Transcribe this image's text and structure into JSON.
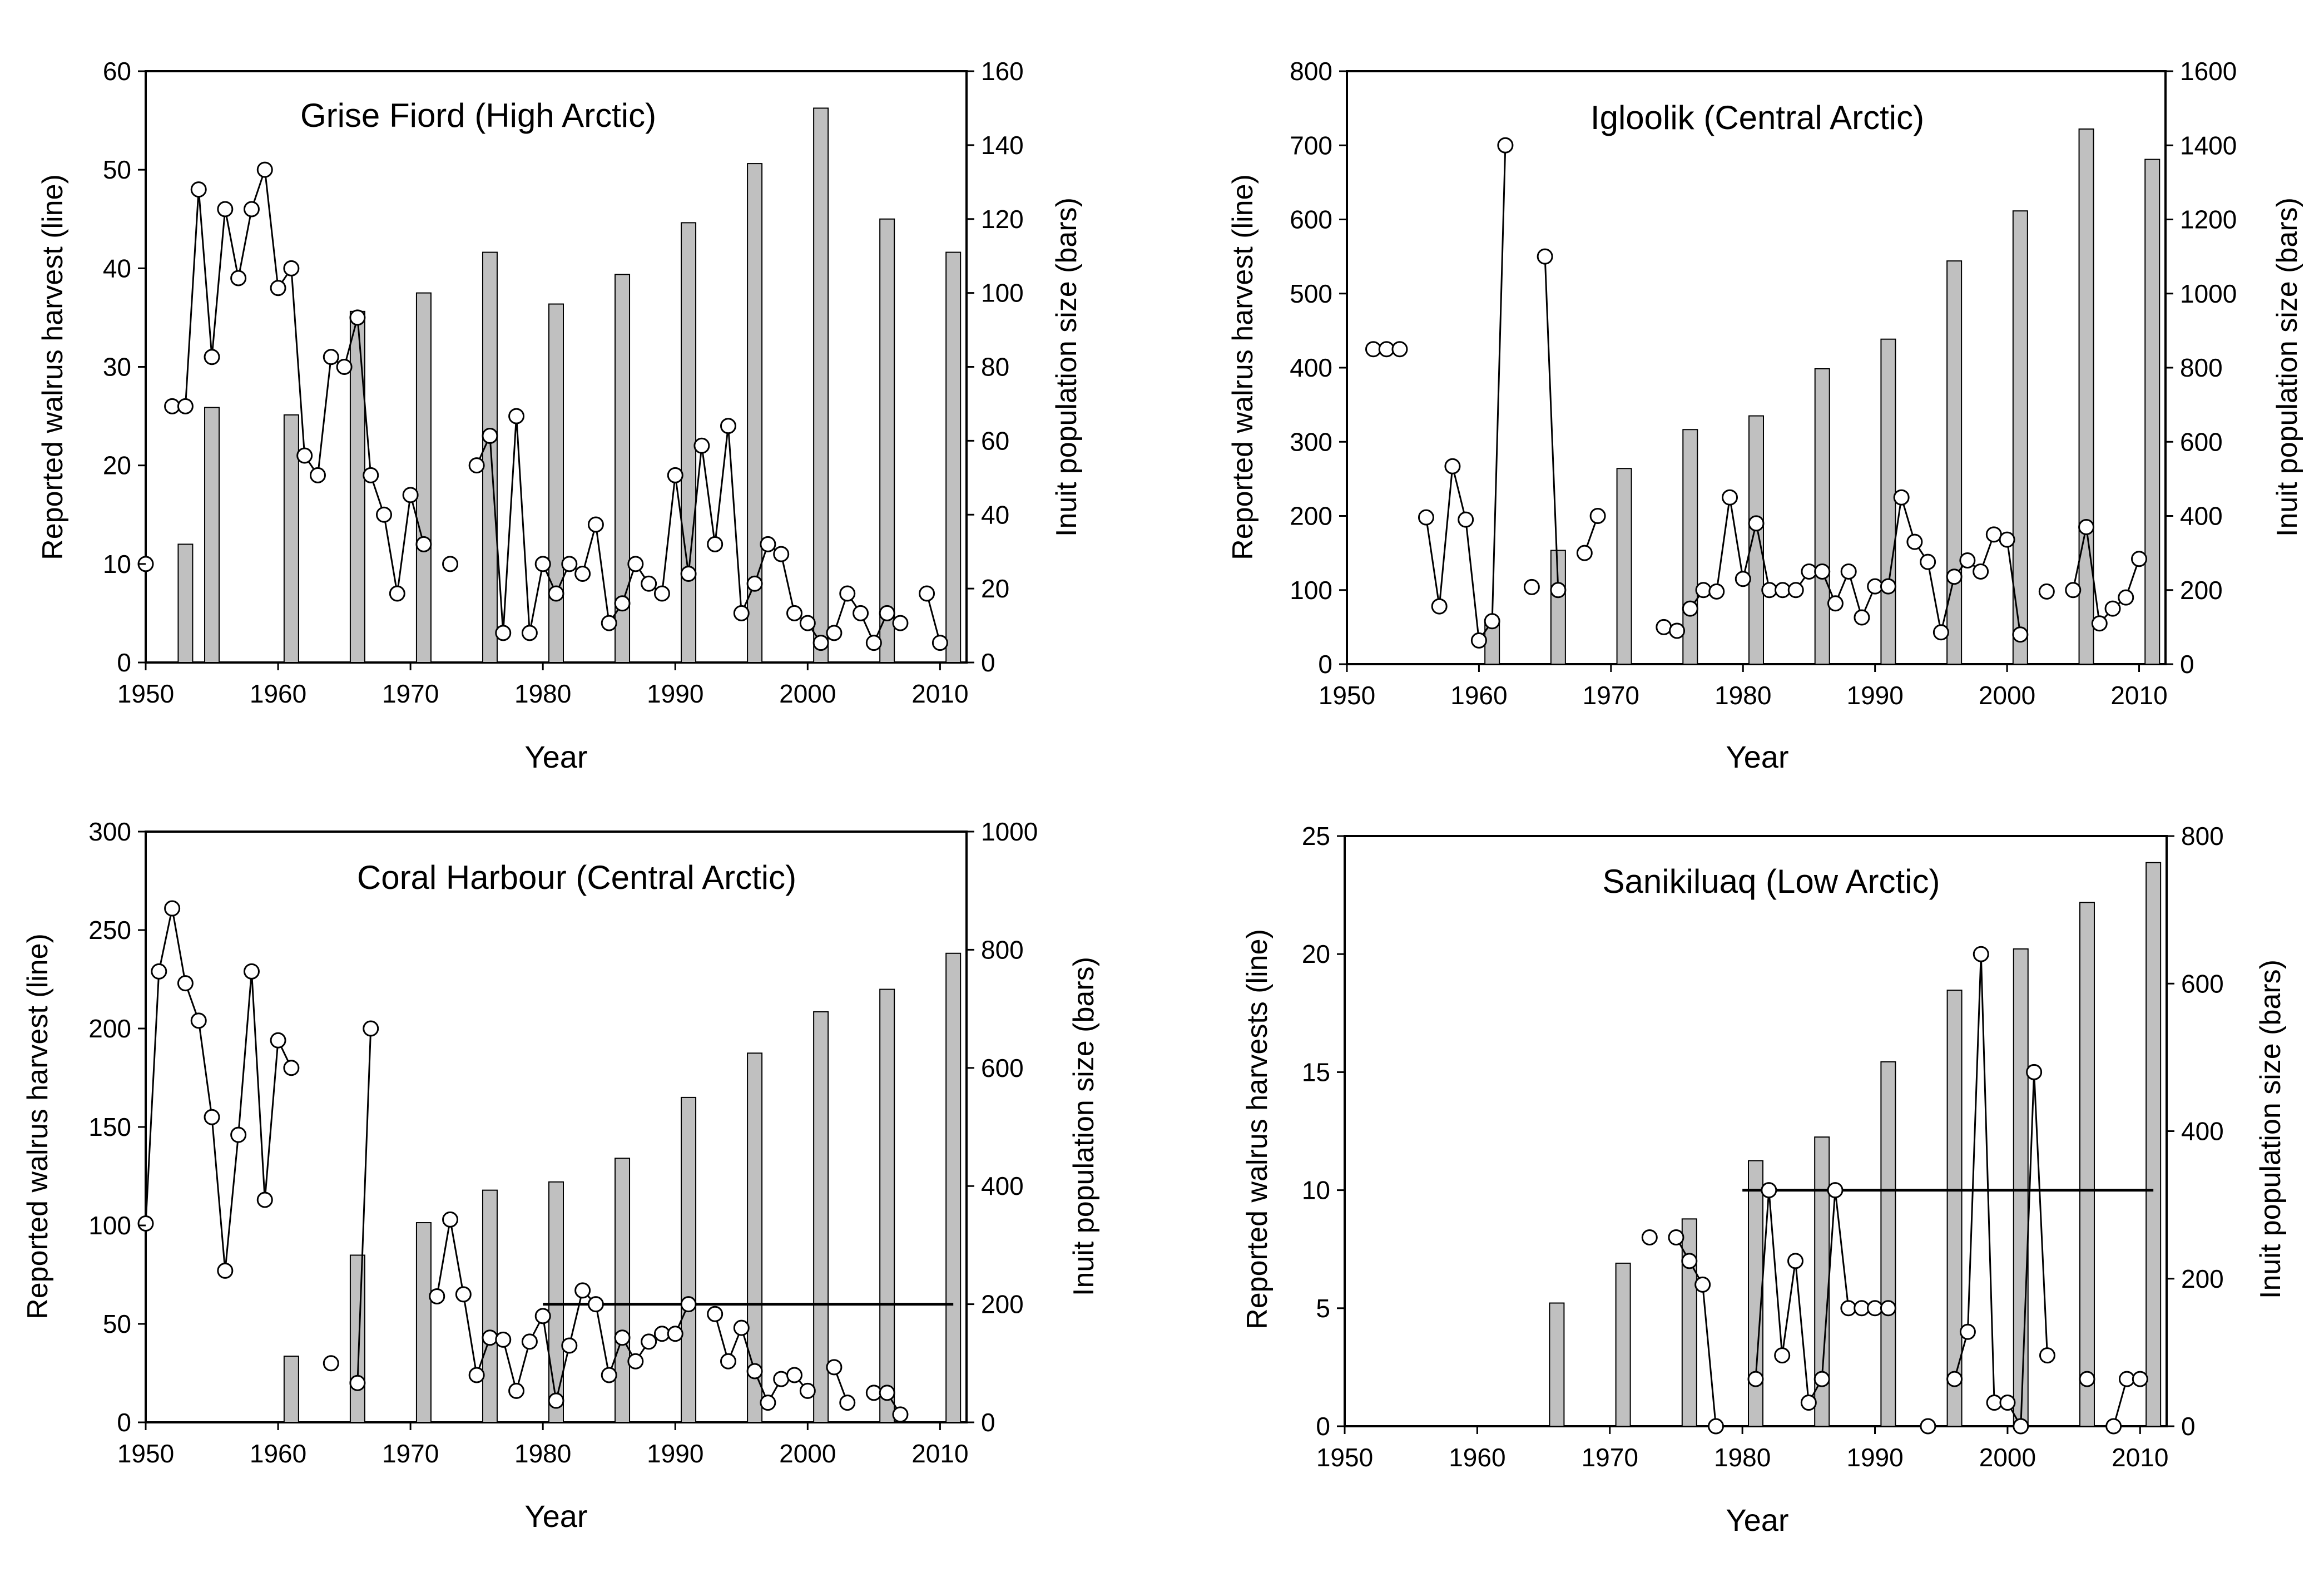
{
  "chart_data": [
    {
      "type": "bar+line",
      "title": "Grise Fiord (High Arctic)",
      "xlabel": "Year",
      "ylabel": "Reported walrus harvest (line)",
      "y2label": "Inuit population size (bars)",
      "xlim": [
        1950,
        2012
      ],
      "xticks": [
        1950,
        1960,
        1970,
        1980,
        1990,
        2000,
        2010
      ],
      "ylim": [
        0,
        60
      ],
      "yticks": [
        0,
        10,
        20,
        30,
        40,
        50,
        60
      ],
      "y2lim": [
        0,
        160
      ],
      "y2ticks": [
        0,
        20,
        40,
        60,
        80,
        100,
        120,
        140,
        160
      ],
      "bars": {
        "name": "Inuit population size",
        "x": [
          1953,
          1955,
          1961,
          1966,
          1971,
          1976,
          1981,
          1986,
          1991,
          1996,
          2001,
          2006,
          2011
        ],
        "values": [
          32,
          69,
          67,
          95,
          100,
          111,
          97,
          105,
          119,
          135,
          150,
          120,
          111
        ]
      },
      "series": [
        {
          "name": "Reported walrus harvest",
          "x": [
            1950,
            1952,
            1953,
            1954,
            1955,
            1956,
            1957,
            1958,
            1959,
            1960,
            1961,
            1962,
            1963,
            1964,
            1965,
            1966,
            1967,
            1968,
            1969,
            1970,
            1971,
            1973,
            1975,
            1976,
            1977,
            1978,
            1979,
            1980,
            1981,
            1982,
            1983,
            1984,
            1985,
            1986,
            1987,
            1988,
            1989,
            1990,
            1991,
            1992,
            1993,
            1994,
            1995,
            1996,
            1997,
            1998,
            1999,
            2000,
            2001,
            2002,
            2003,
            2004,
            2005,
            2006,
            2007,
            2009,
            2010
          ],
          "values": [
            10,
            26,
            26,
            48,
            31,
            46,
            39,
            46,
            50,
            38,
            40,
            21,
            19,
            31,
            30,
            35,
            19,
            15,
            7,
            17,
            12,
            10,
            20,
            23,
            3,
            25,
            3,
            10,
            7,
            10,
            9,
            14,
            4,
            6,
            10,
            8,
            7,
            19,
            9,
            22,
            12,
            24,
            5,
            8,
            12,
            11,
            5,
            4,
            2,
            3,
            7,
            5,
            2,
            5,
            4,
            7,
            2
          ]
        }
      ],
      "line_breaks_after": [
        1950,
        1971,
        1973,
        2007
      ],
      "reference_line": null
    },
    {
      "type": "bar+line",
      "title": "Igloolik (Central Arctic)",
      "xlabel": "Year",
      "ylabel": "Reported walrus harvest (line)",
      "y2label": "Inuit population size (bars)",
      "xlim": [
        1950,
        2012
      ],
      "xticks": [
        1950,
        1960,
        1970,
        1980,
        1990,
        2000,
        2010
      ],
      "ylim": [
        0,
        800
      ],
      "yticks": [
        0,
        100,
        200,
        300,
        400,
        500,
        600,
        700,
        800
      ],
      "y2lim": [
        0,
        1600
      ],
      "y2ticks": [
        0,
        200,
        400,
        600,
        800,
        1000,
        1200,
        1400,
        1600
      ],
      "bars": {
        "name": "Inuit population size",
        "x": [
          1961,
          1966,
          1971,
          1976,
          1981,
          1986,
          1991,
          1996,
          2001,
          2006,
          2011
        ],
        "values": [
          110,
          307,
          528,
          633,
          670,
          797,
          877,
          1088,
          1223,
          1444,
          1362
        ]
      },
      "series": [
        {
          "name": "Reported walrus harvest",
          "x": [
            1952,
            1953,
            1954,
            1956,
            1957,
            1958,
            1959,
            1960,
            1961,
            1962,
            1964,
            1965,
            1966,
            1968,
            1969,
            1974,
            1975,
            1976,
            1977,
            1978,
            1979,
            1980,
            1981,
            1982,
            1983,
            1984,
            1985,
            1986,
            1987,
            1988,
            1989,
            1990,
            1991,
            1992,
            1993,
            1994,
            1995,
            1996,
            1997,
            1998,
            1999,
            2000,
            2001,
            2003,
            2005,
            2006,
            2007,
            2008,
            2009,
            2010
          ],
          "values": [
            425,
            425,
            425,
            198,
            78,
            267,
            195,
            32,
            58,
            700,
            104,
            550,
            100,
            150,
            200,
            50,
            45,
            75,
            100,
            98,
            225,
            115,
            190,
            100,
            100,
            100,
            125,
            125,
            82,
            125,
            63,
            105,
            105,
            225,
            165,
            138,
            43,
            118,
            140,
            125,
            175,
            168,
            40,
            98,
            100,
            185,
            55,
            75,
            90,
            142
          ]
        }
      ],
      "line_breaks_after": [
        1952,
        1953,
        1954,
        1962,
        1964,
        1966,
        1969,
        1975,
        2001,
        2003
      ],
      "reference_line": null
    },
    {
      "type": "bar+line",
      "title": "Coral Harbour (Central Arctic)",
      "xlabel": "Year",
      "ylabel": "Reported walrus harvest (line)",
      "y2label": "Inuit population size (bars)",
      "xlim": [
        1950,
        2012
      ],
      "xticks": [
        1950,
        1960,
        1970,
        1980,
        1990,
        2000,
        2010
      ],
      "ylim": [
        0,
        300
      ],
      "yticks": [
        0,
        50,
        100,
        150,
        200,
        250,
        300
      ],
      "y2lim": [
        0,
        1000
      ],
      "y2ticks": [
        0,
        200,
        400,
        600,
        800,
        1000
      ],
      "bars": {
        "name": "Inuit population size",
        "x": [
          1961,
          1966,
          1971,
          1976,
          1981,
          1986,
          1991,
          1996,
          2001,
          2006,
          2011
        ],
        "values": [
          112,
          283,
          338,
          393,
          407,
          447,
          550,
          625,
          695,
          733,
          794
        ]
      },
      "series": [
        {
          "name": "Reported walrus harvest",
          "x": [
            1950,
            1951,
            1952,
            1953,
            1954,
            1955,
            1956,
            1957,
            1958,
            1959,
            1960,
            1961,
            1964,
            1966,
            1967,
            1972,
            1973,
            1974,
            1975,
            1976,
            1977,
            1978,
            1979,
            1980,
            1981,
            1982,
            1983,
            1984,
            1985,
            1986,
            1987,
            1988,
            1989,
            1990,
            1991,
            1993,
            1994,
            1995,
            1996,
            1997,
            1998,
            1999,
            2000,
            2002,
            2003,
            2005,
            2006,
            2007
          ],
          "values": [
            101,
            229,
            261,
            223,
            204,
            155,
            77,
            146,
            229,
            113,
            194,
            180,
            30,
            20,
            200,
            64,
            103,
            65,
            24,
            43,
            42,
            16,
            41,
            54,
            11,
            39,
            67,
            60,
            24,
            43,
            31,
            41,
            45,
            45,
            60,
            55,
            31,
            48,
            26,
            10,
            22,
            24,
            16,
            28,
            10,
            15,
            15,
            4
          ]
        }
      ],
      "line_breaks_after": [
        1961,
        1964,
        1967,
        1991,
        2000,
        2003
      ],
      "reference_line": {
        "value": 60,
        "x_start": 1980,
        "x_end": 2011
      }
    },
    {
      "type": "bar+line",
      "title": "Sanikiluaq (Low Arctic)",
      "xlabel": "Year",
      "ylabel": "Reported walrus harvests (line)",
      "y2label": "Inuit population size (bars)",
      "xlim": [
        1950,
        2012
      ],
      "xticks": [
        1950,
        1960,
        1970,
        1980,
        1990,
        2000,
        2010
      ],
      "ylim": [
        0,
        25
      ],
      "yticks": [
        0,
        5,
        10,
        15,
        20,
        25
      ],
      "y2lim": [
        0,
        800
      ],
      "y2ticks": [
        0,
        200,
        400,
        600,
        800
      ],
      "bars": {
        "name": "Inuit population size",
        "x": [
          1966,
          1971,
          1976,
          1981,
          1986,
          1991,
          1996,
          2001,
          2006,
          2011
        ],
        "values": [
          167,
          221,
          281,
          360,
          392,
          494,
          591,
          647,
          710,
          764
        ]
      },
      "series": [
        {
          "name": "Reported walrus harvest",
          "x": [
            1973,
            1975,
            1976,
            1977,
            1978,
            1981,
            1982,
            1983,
            1984,
            1985,
            1986,
            1987,
            1988,
            1989,
            1990,
            1991,
            1994,
            1996,
            1997,
            1998,
            1999,
            2000,
            2001,
            2002,
            2003,
            2006,
            2008,
            2009,
            2010
          ],
          "values": [
            8,
            8,
            7,
            6,
            0,
            2,
            10,
            3,
            7,
            1,
            2,
            10,
            5,
            5,
            5,
            5,
            0,
            2,
            4,
            20,
            1,
            1,
            0,
            15,
            3,
            2,
            0,
            2,
            2
          ]
        }
      ],
      "line_breaks_after": [
        1973,
        1978,
        1991,
        1994,
        2003,
        2006
      ],
      "reference_line": {
        "value": 10,
        "x_start": 1980,
        "x_end": 2011
      }
    }
  ]
}
